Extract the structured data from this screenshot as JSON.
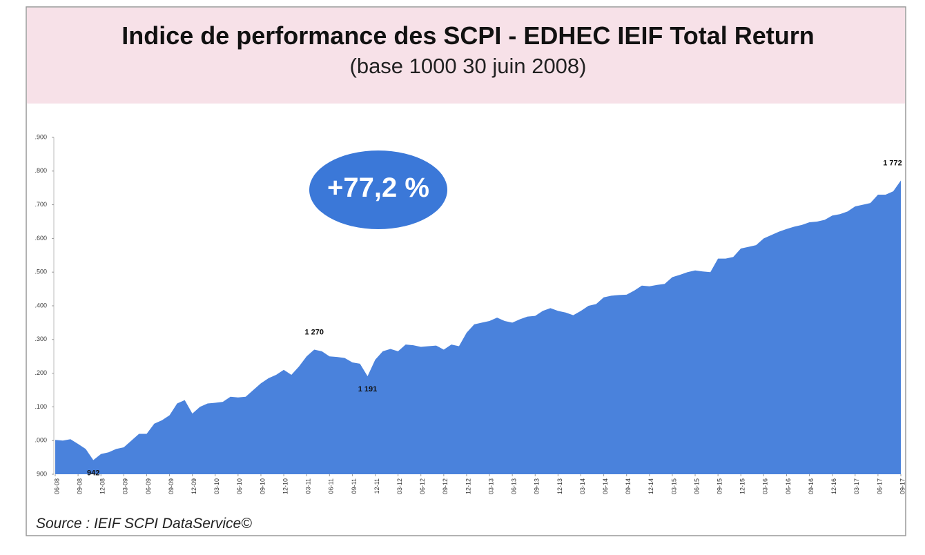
{
  "chart_data": {
    "type": "area",
    "title": "Indice de performance des SCPI - EDHEC IEIF Total Return",
    "subtitle": "(base 1000 30 juin 2008)",
    "badge": "+77,2 %",
    "source": "Source : IEIF SCPI DataService©",
    "color": "#4a82dc",
    "categories": [
      "06-08",
      null,
      null,
      "09-08",
      null,
      null,
      "12-08",
      null,
      null,
      "03-09",
      null,
      null,
      "06-09",
      null,
      null,
      "09-09",
      null,
      null,
      "12-09",
      null,
      null,
      "03-10",
      null,
      null,
      "06-10",
      null,
      null,
      "09-10",
      null,
      null,
      "12-10",
      null,
      null,
      "03-11",
      null,
      null,
      "06-11",
      null,
      null,
      "09-11",
      null,
      null,
      "12-11",
      null,
      null,
      "03-12",
      null,
      null,
      "06-12",
      null,
      null,
      "09-12",
      null,
      null,
      "12-12",
      null,
      null,
      "03-13",
      null,
      null,
      "06-13",
      null,
      null,
      "09-13",
      null,
      null,
      "12-13",
      null,
      null,
      "03-14",
      null,
      null,
      "06-14",
      null,
      null,
      "09-14",
      null,
      null,
      "12-14",
      null,
      null,
      "03-15",
      null,
      null,
      "06-15",
      null,
      null,
      "09-15",
      null,
      null,
      "12-15",
      null,
      null,
      "03-16",
      null,
      null,
      "06-16",
      null,
      null,
      "09-16",
      null,
      null,
      "12-16",
      null,
      null,
      "03-17",
      null,
      null,
      "06-17",
      null,
      null,
      "09-17"
    ],
    "values": [
      1002,
      1000,
      1004,
      990,
      975,
      942,
      960,
      965,
      975,
      980,
      1000,
      1020,
      1020,
      1050,
      1060,
      1075,
      1110,
      1120,
      1080,
      1100,
      1110,
      1112,
      1115,
      1130,
      1128,
      1130,
      1150,
      1170,
      1185,
      1195,
      1210,
      1195,
      1220,
      1250,
      1270,
      1265,
      1250,
      1248,
      1245,
      1232,
      1228,
      1191,
      1240,
      1265,
      1272,
      1265,
      1285,
      1283,
      1278,
      1280,
      1282,
      1270,
      1285,
      1280,
      1320,
      1345,
      1350,
      1355,
      1365,
      1355,
      1350,
      1360,
      1368,
      1370,
      1385,
      1393,
      1385,
      1380,
      1372,
      1385,
      1400,
      1405,
      1425,
      1430,
      1432,
      1433,
      1445,
      1460,
      1458,
      1462,
      1465,
      1485,
      1492,
      1500,
      1505,
      1502,
      1500,
      1540,
      1540,
      1545,
      1570,
      1575,
      1580,
      1600,
      1610,
      1620,
      1628,
      1635,
      1640,
      1648,
      1650,
      1655,
      1668,
      1672,
      1680,
      1695,
      1700,
      1705,
      1730,
      1730,
      1740,
      1772
    ],
    "value_labels": [
      null,
      null,
      null,
      null,
      null,
      "942",
      null,
      null,
      null,
      null,
      null,
      null,
      null,
      null,
      null,
      null,
      null,
      null,
      null,
      null,
      null,
      null,
      null,
      null,
      null,
      null,
      null,
      null,
      null,
      null,
      null,
      null,
      null,
      null,
      "1 270",
      null,
      null,
      null,
      null,
      null,
      null,
      "1 191",
      null,
      null,
      null,
      null,
      null,
      null,
      null,
      null,
      null,
      null,
      null,
      null,
      null,
      null,
      null,
      null,
      null,
      null,
      null,
      null,
      null,
      null,
      null,
      null,
      null,
      null,
      null,
      null,
      null,
      null,
      null,
      null,
      null,
      null,
      null,
      null,
      null,
      null,
      null,
      null,
      null,
      null,
      null,
      null,
      null,
      null,
      null,
      null,
      null,
      null,
      null,
      null,
      null,
      null,
      null,
      null,
      null,
      null,
      null,
      null,
      null,
      null,
      null,
      null,
      null,
      null,
      null,
      null,
      null,
      "1 772"
    ],
    "ylim": [
      900,
      1900
    ],
    "yticks": [
      900,
      {
        "value": 1000,
        "label": ".000"
      },
      {
        "value": 1100,
        "label": ".100"
      },
      {
        "value": 1200,
        "label": ".200"
      },
      {
        "value": 1300,
        "label": ".300"
      },
      {
        "value": 1400,
        "label": ".400"
      },
      {
        "value": 1500,
        "label": ".500"
      },
      {
        "value": 1600,
        "label": ".600"
      },
      {
        "value": 1700,
        "label": ".700"
      },
      {
        "value": 1800,
        "label": ".800"
      },
      {
        "value": 1900,
        "label": ".900"
      }
    ],
    "grid": false
  }
}
